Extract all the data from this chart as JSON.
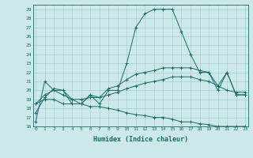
{
  "xlabel": "Humidex (Indice chaleur)",
  "x_labels": [
    "0",
    "1",
    "2",
    "3",
    "4",
    "5",
    "6",
    "7",
    "8",
    "9",
    "10",
    "11",
    "12",
    "13",
    "14",
    "15",
    "16",
    "17",
    "18",
    "19",
    "20",
    "21",
    "22",
    "23"
  ],
  "ylim": [
    16,
    29.5
  ],
  "yticks": [
    16,
    17,
    18,
    19,
    20,
    21,
    22,
    23,
    24,
    25,
    26,
    27,
    28,
    29
  ],
  "bg_color": "#cce8e8",
  "grid_color": "#aacece",
  "line_color": "#1a6b6b",
  "line1": [
    16.5,
    21.0,
    20.0,
    20.0,
    18.5,
    18.5,
    19.5,
    18.5,
    20.0,
    20.0,
    23.0,
    27.0,
    28.5,
    29.0,
    29.0,
    29.0,
    26.5,
    24.0,
    22.0,
    22.0,
    20.0,
    22.0,
    19.5,
    19.5
  ],
  "line2": [
    17.5,
    19.2,
    20.2,
    20.0,
    19.0,
    18.5,
    19.5,
    19.2,
    20.2,
    20.5,
    21.2,
    21.8,
    22.0,
    22.2,
    22.5,
    22.5,
    22.5,
    22.5,
    22.2,
    22.0,
    20.5,
    22.0,
    19.5,
    19.5
  ],
  "line3": [
    18.5,
    19.5,
    20.0,
    19.5,
    19.0,
    19.0,
    19.2,
    19.2,
    19.5,
    19.8,
    20.2,
    20.5,
    20.8,
    21.0,
    21.2,
    21.5,
    21.5,
    21.5,
    21.2,
    21.0,
    20.5,
    20.0,
    19.8,
    19.8
  ],
  "line4": [
    18.5,
    19.0,
    19.0,
    18.5,
    18.5,
    18.5,
    18.2,
    18.2,
    18.0,
    17.8,
    17.5,
    17.3,
    17.2,
    17.0,
    17.0,
    16.8,
    16.5,
    16.5,
    16.3,
    16.2,
    16.0,
    16.0,
    16.0,
    16.0
  ]
}
